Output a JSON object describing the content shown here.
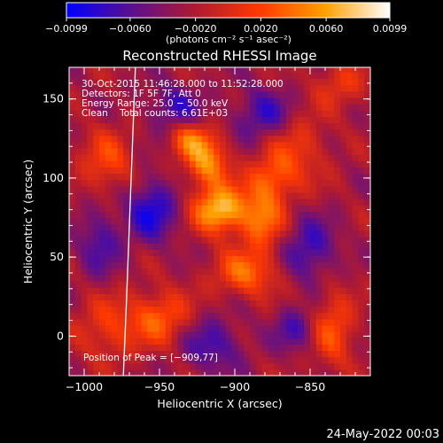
{
  "chart_data": {
    "type": "heatmap",
    "title": "Reconstructed RHESSI Image",
    "xlabel": "Heliocentric X (arcsec)",
    "ylabel": "Heliocentric Y (arcsec)",
    "xlim": [
      -1010,
      -810
    ],
    "ylim": [
      -25,
      170
    ],
    "x_ticks": [
      -1000,
      -950,
      -900,
      -850
    ],
    "x_tick_labels": [
      "−1000",
      "−950",
      "−900",
      "−850"
    ],
    "y_ticks": [
      0,
      50,
      100,
      150
    ],
    "y_tick_labels": [
      "0",
      "50",
      "100",
      "150"
    ],
    "grid": false,
    "colorbar": {
      "range": [
        -0.0099,
        0.0099
      ],
      "tick_values": [
        -0.0099,
        -0.006,
        -0.002,
        0.002,
        0.006,
        0.0099
      ],
      "tick_labels": [
        "−0.0099",
        "−0.0060",
        "−0.0020",
        "0.0020",
        "0.0060",
        "0.0099"
      ],
      "units": "(photons cm⁻² s⁻¹ asec⁻²)",
      "colors": [
        "#0000ff",
        "#5a0f90",
        "#b01a30",
        "#ff3a00",
        "#ffa000",
        "#ffffff"
      ]
    },
    "annotations": {
      "time": "30‐Oct‐2015 11:46:28.000 to 11:52:28.000",
      "detectors": "Detectors: 1F 5F 7F, Att 0",
      "energy": "Energy Range: 25.0 − 50.0 keV",
      "clean": "Clean    Total counts: 6.61E+03",
      "peak": "Position of Peak = [−909,77]"
    },
    "peak_position": [
      -909,
      77
    ],
    "limb_curve": [
      [
        -966,
        170
      ],
      [
        -968,
        120
      ],
      [
        -970,
        70
      ],
      [
        -972,
        20
      ],
      [
        -974,
        -25
      ]
    ],
    "blobs": [
      {
        "x": -918,
        "y": 110,
        "amp": 0.0075,
        "sx": 10,
        "sy": 11
      },
      {
        "x": -930,
        "y": 125,
        "amp": 0.0055,
        "sx": 9,
        "sy": 8
      },
      {
        "x": -910,
        "y": 80,
        "amp": 0.0099,
        "sx": 12,
        "sy": 10
      },
      {
        "x": -882,
        "y": 75,
        "amp": 0.0065,
        "sx": 10,
        "sy": 14
      },
      {
        "x": -893,
        "y": 40,
        "amp": 0.006,
        "sx": 14,
        "sy": 10
      },
      {
        "x": -875,
        "y": 100,
        "amp": 0.0045,
        "sx": 11,
        "sy": 10
      },
      {
        "x": -950,
        "y": 12,
        "amp": 0.0055,
        "sx": 14,
        "sy": 12
      },
      {
        "x": -835,
        "y": 5,
        "amp": 0.0048,
        "sx": 10,
        "sy": 18
      },
      {
        "x": -860,
        "y": 120,
        "amp": 0.004,
        "sx": 14,
        "sy": 16
      },
      {
        "x": -985,
        "y": 110,
        "amp": 0.0045,
        "sx": 12,
        "sy": 14
      },
      {
        "x": -985,
        "y": 5,
        "amp": 0.004,
        "sx": 14,
        "sy": 14
      },
      {
        "x": -830,
        "y": 160,
        "amp": 0.0035,
        "sx": 12,
        "sy": 10
      },
      {
        "x": -955,
        "y": 80,
        "amp": -0.006,
        "sx": 12,
        "sy": 14
      },
      {
        "x": -880,
        "y": 140,
        "amp": -0.005,
        "sx": 14,
        "sy": 12
      },
      {
        "x": -940,
        "y": 145,
        "amp": -0.0045,
        "sx": 12,
        "sy": 10
      },
      {
        "x": -850,
        "y": 55,
        "amp": -0.005,
        "sx": 12,
        "sy": 14
      },
      {
        "x": -915,
        "y": -5,
        "amp": -0.0045,
        "sx": 14,
        "sy": 12
      },
      {
        "x": -990,
        "y": 60,
        "amp": -0.004,
        "sx": 10,
        "sy": 16
      },
      {
        "x": -860,
        "y": 5,
        "amp": -0.004,
        "sx": 10,
        "sy": 10
      }
    ]
  },
  "footer": {
    "date": "24‐May‐2022 00:03"
  }
}
